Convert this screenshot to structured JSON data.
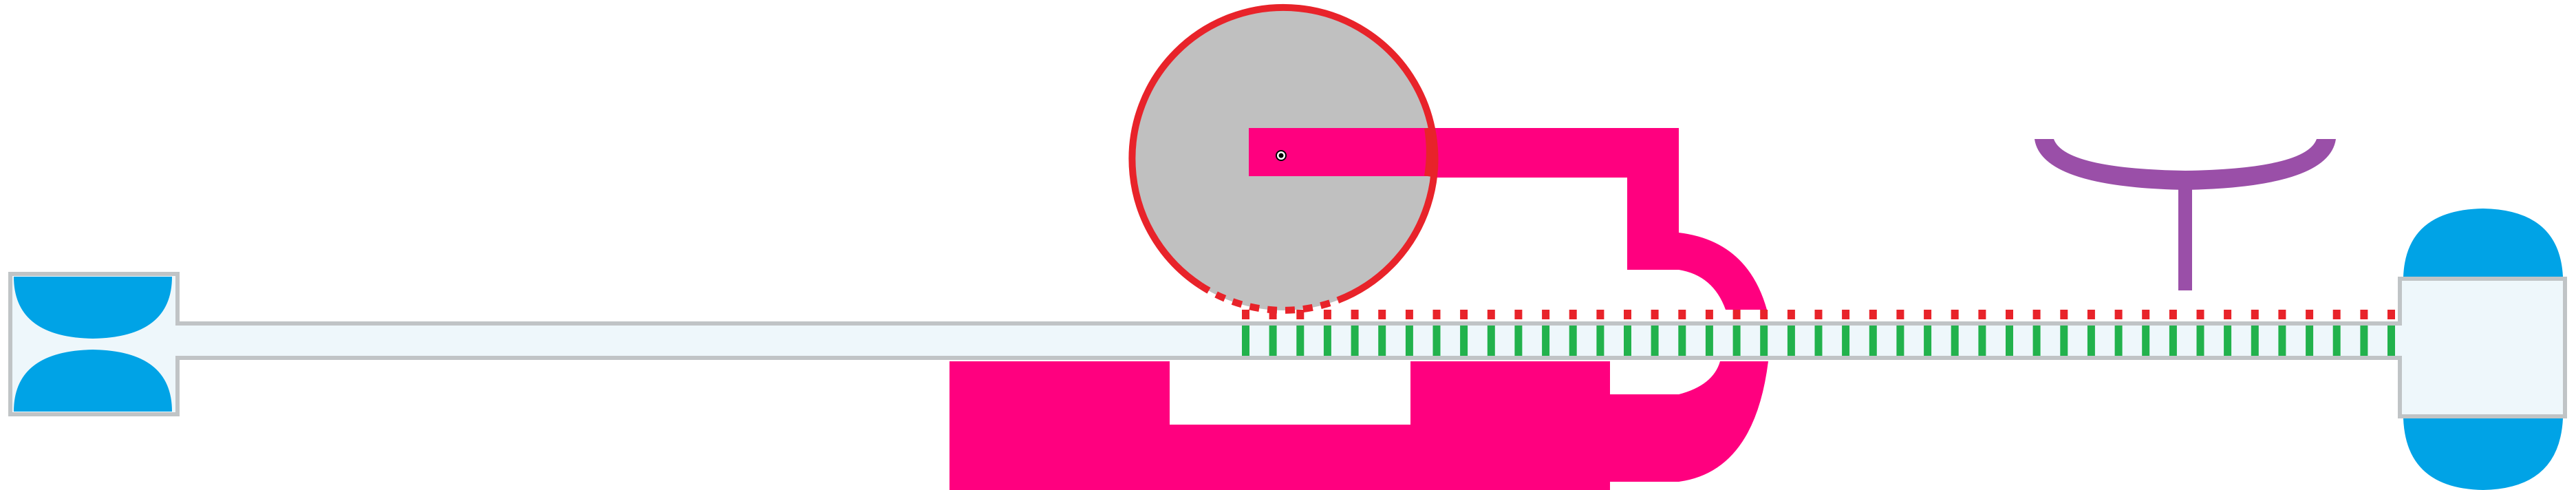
{
  "colors": {
    "background": "#ffffff",
    "tube_fill": "#eef7fb",
    "tube_stroke": "#c0c4c6",
    "bulb_blue": "#00a3e6",
    "magenta": "#ff007f",
    "disk_fill": "#c0c0c0",
    "disk_ring": "#e8232a",
    "green_teeth": "#22b24c",
    "red_teeth": "#e8232a",
    "purple": "#9a4fa8",
    "pivot": "#000000"
  },
  "icons": {
    "left_end": "blue-lens-pair-icon",
    "right_end": "blue-dome-pair-icon",
    "wheel": "grey-disk-wheel-icon",
    "stand": "purple-t-stand-icon"
  },
  "counts": {
    "green_teeth": 43,
    "red_teeth": 43
  }
}
